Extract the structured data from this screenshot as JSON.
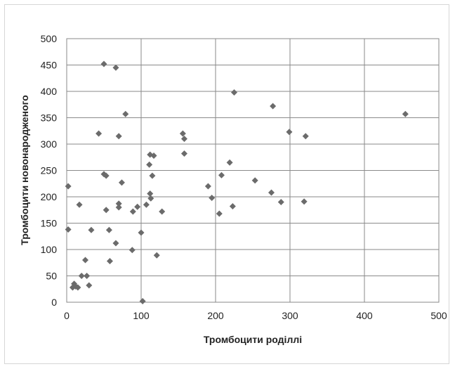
{
  "chart_data": {
    "type": "scatter",
    "title": "",
    "xlabel": "Тромбоцити роділлі",
    "ylabel": "Тромбоцити новонародженого",
    "xlim": [
      0,
      500
    ],
    "ylim": [
      0,
      500
    ],
    "x_ticks": [
      "0",
      "100",
      "200",
      "300",
      "400",
      "500"
    ],
    "y_ticks": [
      "0",
      "50",
      "100",
      "150",
      "200",
      "250",
      "300",
      "350",
      "400",
      "450",
      "500"
    ],
    "grid": true,
    "legend": "none",
    "marker": "diamond",
    "color": "#6b6b6b",
    "points": [
      [
        2,
        220
      ],
      [
        2,
        138
      ],
      [
        8,
        28
      ],
      [
        10,
        35
      ],
      [
        12,
        30
      ],
      [
        15,
        28
      ],
      [
        17,
        185
      ],
      [
        20,
        50
      ],
      [
        25,
        80
      ],
      [
        27,
        50
      ],
      [
        30,
        32
      ],
      [
        33,
        137
      ],
      [
        43,
        320
      ],
      [
        50,
        243
      ],
      [
        50,
        452
      ],
      [
        53,
        240
      ],
      [
        53,
        175
      ],
      [
        57,
        137
      ],
      [
        58,
        78
      ],
      [
        66,
        445
      ],
      [
        66,
        112
      ],
      [
        70,
        315
      ],
      [
        70,
        180
      ],
      [
        70,
        187
      ],
      [
        74,
        227
      ],
      [
        79,
        357
      ],
      [
        88,
        99
      ],
      [
        89,
        172
      ],
      [
        95,
        181
      ],
      [
        100,
        132
      ],
      [
        102,
        2
      ],
      [
        107,
        185
      ],
      [
        111,
        261
      ],
      [
        112,
        280
      ],
      [
        112,
        206
      ],
      [
        113,
        197
      ],
      [
        115,
        240
      ],
      [
        117,
        278
      ],
      [
        121,
        89
      ],
      [
        128,
        172
      ],
      [
        156,
        320
      ],
      [
        158,
        310
      ],
      [
        158,
        282
      ],
      [
        190,
        220
      ],
      [
        195,
        198
      ],
      [
        205,
        168
      ],
      [
        208,
        241
      ],
      [
        219,
        265
      ],
      [
        223,
        182
      ],
      [
        225,
        398
      ],
      [
        253,
        231
      ],
      [
        275,
        208
      ],
      [
        277,
        372
      ],
      [
        288,
        190
      ],
      [
        299,
        323
      ],
      [
        319,
        191
      ],
      [
        321,
        315
      ],
      [
        455,
        357
      ]
    ]
  }
}
